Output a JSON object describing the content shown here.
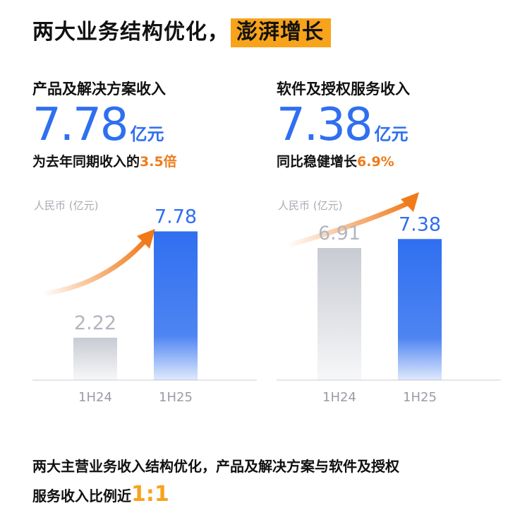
{
  "headline": {
    "prefix": "两大业务结构优化，",
    "highlight": "澎湃增长"
  },
  "left_panel": {
    "label": "产品及解决方案收入",
    "value": "7.78",
    "unit": "亿元",
    "note_prefix": "为去年同期收入的",
    "note_accent": "3.5倍"
  },
  "right_panel": {
    "label": "软件及授权服务收入",
    "value": "7.38",
    "unit": "亿元",
    "note_prefix": "同比稳健增长",
    "note_accent": "6.9%"
  },
  "chart_data": [
    {
      "type": "bar",
      "ylabel": "人民币 (亿元)",
      "categories": [
        "1H24",
        "1H25"
      ],
      "values": [
        2.22,
        7.78
      ],
      "data_labels": [
        "2.22",
        "7.78"
      ],
      "ylim": [
        0,
        8.5
      ]
    },
    {
      "type": "bar",
      "ylabel": "人民币 (亿元)",
      "categories": [
        "1H24",
        "1H25"
      ],
      "values": [
        6.91,
        7.38
      ],
      "data_labels": [
        "6.91",
        "7.38"
      ],
      "ylim": [
        0,
        8.5
      ]
    }
  ],
  "colors": {
    "accent_blue": "#2f6ff0",
    "accent_orange": "#f07a1a",
    "highlight_yellow": "#f7a31c",
    "bar_gray": "#c8cbd3"
  },
  "footer": {
    "line1": "两大主营业务收入结构优化，产品及解决方案与软件及授权",
    "line2_prefix": "服务收入比例近",
    "ratio": "1:1"
  }
}
